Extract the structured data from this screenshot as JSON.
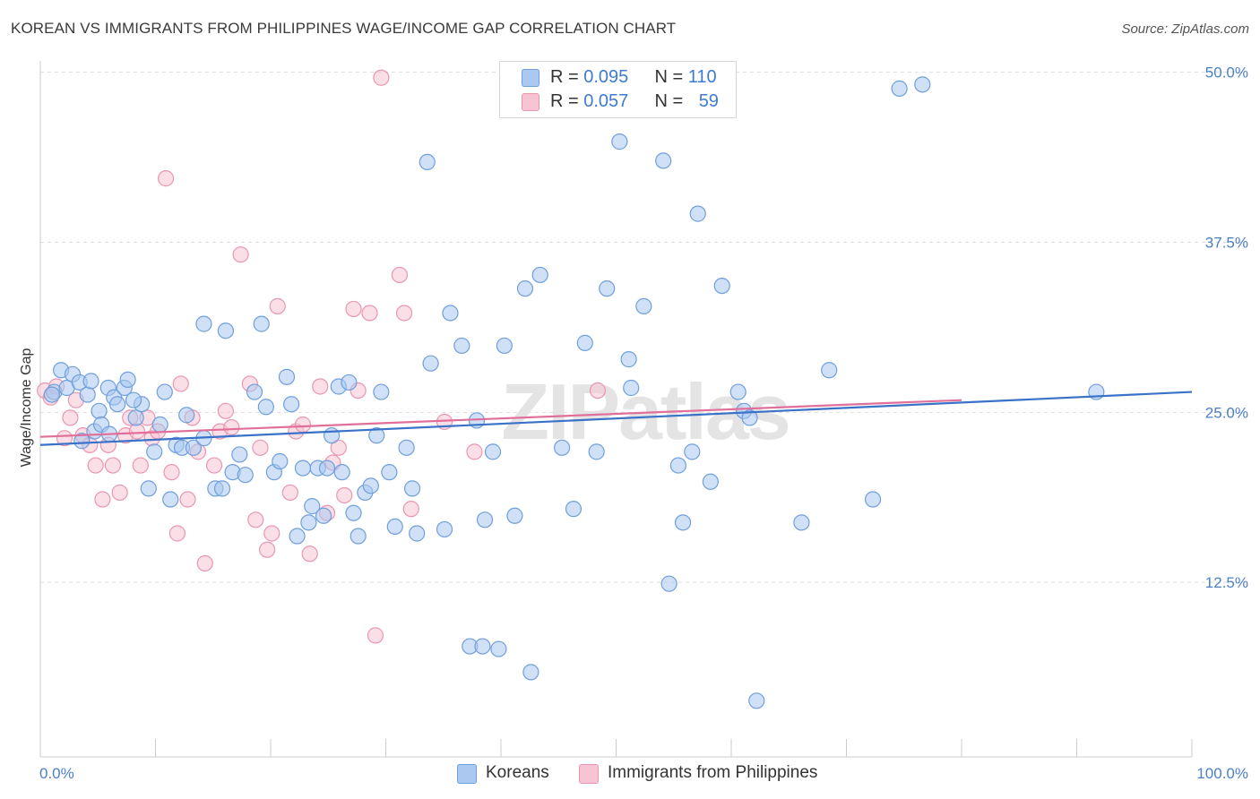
{
  "title": "KOREAN VS IMMIGRANTS FROM PHILIPPINES WAGE/INCOME GAP CORRELATION CHART",
  "source": "Source: ZipAtlas.com",
  "watermark": "ZIPatlas",
  "legend": {
    "rows": [
      {
        "r_label": "R = ",
        "r_value": "0.095",
        "n_label": "N = ",
        "n_value": "110"
      },
      {
        "r_label": "R = ",
        "r_value": "0.057",
        "n_label": "N = ",
        "n_value": "59"
      }
    ]
  },
  "bottom_legend": [
    "Koreans",
    "Immigrants from Philippines"
  ],
  "colors": {
    "blue_fill": "#aac8f0",
    "blue_stroke": "#6f9fdc",
    "blue_line": "#3a72c8",
    "pink_fill": "#f8c4d4",
    "pink_stroke": "#e996b2",
    "pink_line": "#e0709a",
    "tick_label": "#4a7fc8",
    "grid": "#dddddd"
  },
  "chart_data": {
    "type": "scatter",
    "ylabel": "Wage/Income Gap",
    "xlim": [
      0,
      100
    ],
    "ylim": [
      0,
      50
    ],
    "x_tick_labels": [
      "0.0%",
      "100.0%"
    ],
    "y_ticks": [
      12.5,
      25.0,
      37.5,
      50.0
    ],
    "y_tick_labels": [
      "12.5%",
      "25.0%",
      "37.5%",
      "50.0%"
    ],
    "grid": "horizontal dashed",
    "series": [
      {
        "name": "Koreans",
        "trend": [
          [
            0,
            22.6
          ],
          [
            100,
            26.5
          ]
        ],
        "points": [
          [
            1.2,
            26.5
          ],
          [
            1.8,
            28.1
          ],
          [
            2.3,
            26.8
          ],
          [
            2.8,
            27.8
          ],
          [
            3.4,
            27.2
          ],
          [
            4.1,
            26.3
          ],
          [
            4.7,
            23.6
          ],
          [
            5.1,
            25.1
          ],
          [
            5.3,
            24.1
          ],
          [
            5.9,
            26.8
          ],
          [
            6.4,
            26.1
          ],
          [
            6.7,
            25.6
          ],
          [
            7.3,
            26.8
          ],
          [
            7.6,
            27.4
          ],
          [
            8.3,
            24.6
          ],
          [
            8.8,
            25.6
          ],
          [
            9.4,
            19.4
          ],
          [
            9.9,
            22.1
          ],
          [
            10.4,
            24.1
          ],
          [
            10.8,
            26.5
          ],
          [
            11.3,
            18.6
          ],
          [
            11.8,
            22.6
          ],
          [
            12.3,
            22.4
          ],
          [
            12.7,
            24.8
          ],
          [
            13.3,
            22.4
          ],
          [
            14.2,
            23.1
          ],
          [
            14.2,
            31.5
          ],
          [
            15.2,
            19.4
          ],
          [
            15.8,
            19.4
          ],
          [
            16.1,
            31.0
          ],
          [
            16.7,
            20.6
          ],
          [
            17.3,
            21.9
          ],
          [
            17.8,
            20.4
          ],
          [
            18.6,
            26.5
          ],
          [
            19.2,
            31.5
          ],
          [
            19.6,
            25.4
          ],
          [
            20.3,
            20.6
          ],
          [
            20.8,
            21.4
          ],
          [
            21.4,
            27.6
          ],
          [
            21.8,
            25.6
          ],
          [
            22.3,
            15.9
          ],
          [
            22.8,
            20.9
          ],
          [
            23.3,
            16.9
          ],
          [
            23.6,
            18.1
          ],
          [
            24.1,
            20.9
          ],
          [
            24.6,
            17.4
          ],
          [
            24.9,
            20.9
          ],
          [
            25.3,
            23.3
          ],
          [
            25.9,
            26.9
          ],
          [
            26.2,
            20.6
          ],
          [
            26.8,
            27.2
          ],
          [
            27.2,
            17.6
          ],
          [
            27.6,
            15.9
          ],
          [
            28.2,
            19.1
          ],
          [
            28.7,
            19.6
          ],
          [
            29.2,
            23.3
          ],
          [
            29.6,
            26.5
          ],
          [
            30.3,
            20.6
          ],
          [
            30.8,
            16.6
          ],
          [
            31.8,
            22.4
          ],
          [
            32.3,
            19.4
          ],
          [
            32.7,
            16.1
          ],
          [
            33.6,
            43.4
          ],
          [
            33.9,
            28.6
          ],
          [
            35.1,
            16.4
          ],
          [
            35.6,
            32.3
          ],
          [
            36.6,
            29.9
          ],
          [
            37.3,
            7.8
          ],
          [
            37.9,
            24.4
          ],
          [
            38.4,
            7.8
          ],
          [
            38.6,
            17.1
          ],
          [
            39.3,
            22.1
          ],
          [
            39.8,
            7.6
          ],
          [
            40.3,
            29.9
          ],
          [
            41.2,
            17.4
          ],
          [
            42.1,
            34.1
          ],
          [
            42.6,
            5.9
          ],
          [
            43.4,
            35.1
          ],
          [
            45.3,
            22.4
          ],
          [
            46.3,
            17.9
          ],
          [
            47.3,
            30.1
          ],
          [
            48.3,
            22.1
          ],
          [
            49.2,
            34.1
          ],
          [
            50.3,
            44.9
          ],
          [
            51.1,
            28.9
          ],
          [
            51.3,
            26.8
          ],
          [
            52.4,
            32.8
          ],
          [
            54.1,
            43.5
          ],
          [
            54.6,
            12.4
          ],
          [
            55.4,
            21.1
          ],
          [
            55.8,
            16.9
          ],
          [
            56.6,
            22.1
          ],
          [
            57.1,
            39.6
          ],
          [
            58.2,
            19.9
          ],
          [
            59.2,
            34.3
          ],
          [
            60.6,
            26.5
          ],
          [
            61.1,
            25.1
          ],
          [
            61.6,
            24.6
          ],
          [
            62.2,
            3.8
          ],
          [
            66.1,
            16.9
          ],
          [
            68.5,
            28.1
          ],
          [
            72.3,
            18.6
          ],
          [
            74.6,
            48.8
          ],
          [
            76.6,
            49.1
          ],
          [
            91.7,
            26.5
          ],
          [
            1.0,
            26.3
          ],
          [
            3.6,
            22.9
          ],
          [
            6.0,
            23.4
          ],
          [
            8.1,
            25.9
          ],
          [
            4.4,
            27.3
          ]
        ]
      },
      {
        "name": "Immigrants from Philippines",
        "trend": [
          [
            0,
            23.2
          ],
          [
            80,
            25.9
          ]
        ],
        "points": [
          [
            0.4,
            26.6
          ],
          [
            0.9,
            26.1
          ],
          [
            1.4,
            26.9
          ],
          [
            2.1,
            23.1
          ],
          [
            2.6,
            24.6
          ],
          [
            3.1,
            25.9
          ],
          [
            3.7,
            23.3
          ],
          [
            4.3,
            22.6
          ],
          [
            4.8,
            21.1
          ],
          [
            5.4,
            18.6
          ],
          [
            5.9,
            22.6
          ],
          [
            6.3,
            21.1
          ],
          [
            6.9,
            19.1
          ],
          [
            7.4,
            23.3
          ],
          [
            7.8,
            24.6
          ],
          [
            8.4,
            23.6
          ],
          [
            8.7,
            21.1
          ],
          [
            9.3,
            24.6
          ],
          [
            9.7,
            23.1
          ],
          [
            10.2,
            23.6
          ],
          [
            10.9,
            42.2
          ],
          [
            11.4,
            20.6
          ],
          [
            11.9,
            16.1
          ],
          [
            12.2,
            27.1
          ],
          [
            12.8,
            18.6
          ],
          [
            13.2,
            24.6
          ],
          [
            13.7,
            22.1
          ],
          [
            14.3,
            13.9
          ],
          [
            15.1,
            21.1
          ],
          [
            15.6,
            23.6
          ],
          [
            16.1,
            25.1
          ],
          [
            16.6,
            23.9
          ],
          [
            17.4,
            36.6
          ],
          [
            18.2,
            27.1
          ],
          [
            18.7,
            17.1
          ],
          [
            19.1,
            22.4
          ],
          [
            19.7,
            14.9
          ],
          [
            20.1,
            16.1
          ],
          [
            20.6,
            32.8
          ],
          [
            21.7,
            19.1
          ],
          [
            22.2,
            23.6
          ],
          [
            22.8,
            24.1
          ],
          [
            23.4,
            14.6
          ],
          [
            24.3,
            26.9
          ],
          [
            24.9,
            17.6
          ],
          [
            25.4,
            21.3
          ],
          [
            25.9,
            22.4
          ],
          [
            26.4,
            18.9
          ],
          [
            27.2,
            32.6
          ],
          [
            27.6,
            26.6
          ],
          [
            28.6,
            32.3
          ],
          [
            29.1,
            8.6
          ],
          [
            29.6,
            49.6
          ],
          [
            31.2,
            35.1
          ],
          [
            31.6,
            32.3
          ],
          [
            32.2,
            17.9
          ],
          [
            35.1,
            24.3
          ],
          [
            37.7,
            22.1
          ],
          [
            48.4,
            26.6
          ]
        ]
      }
    ]
  }
}
